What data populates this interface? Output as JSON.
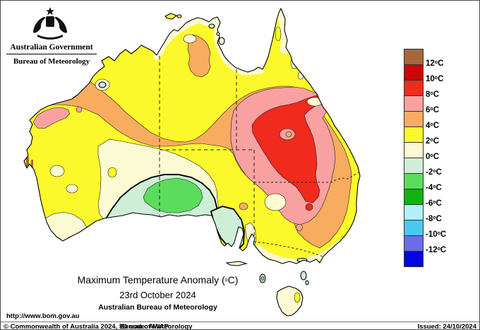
{
  "header": {
    "government_label": "Australian Government",
    "bureau_label": "Bureau of Meteorology"
  },
  "titles": {
    "line1": "Maximum Temperature Anomaly (°C)",
    "line2": "23rd October 2024",
    "line3": "Australian Bureau of Meteorology"
  },
  "legend": {
    "unit": "°C",
    "boundary_labels": [
      "12°C",
      "10°C",
      "8°C",
      "6°C",
      "4°C",
      "2°C",
      "0°C",
      "-2°C",
      "-4°C",
      "-6°C",
      "-8°C",
      "-10°C",
      "-12°C"
    ],
    "colors_top_to_bottom": [
      {
        "name": "above 12",
        "hex": "#A5673B"
      },
      {
        "name": "10 to 12",
        "hex": "#CC0606"
      },
      {
        "name": "8 to 10",
        "hex": "#F02A1D"
      },
      {
        "name": "6 to 8",
        "hex": "#F8A1A0"
      },
      {
        "name": "4 to 6",
        "hex": "#F7AC5F"
      },
      {
        "name": "2 to 4",
        "hex": "#FBF92B"
      },
      {
        "name": "0 to 2",
        "hex": "#FBFAD2"
      },
      {
        "name": "-2 to 0",
        "hex": "#CEEFD6"
      },
      {
        "name": "-4 to -2",
        "hex": "#5CDC5C"
      },
      {
        "name": "-6 to -4",
        "hex": "#12B212"
      },
      {
        "name": "-8 to -6",
        "hex": "#B2F1FB"
      },
      {
        "name": "-10 to -8",
        "hex": "#4AC9EF"
      },
      {
        "name": "-12 to -10",
        "hex": "#6C6CE9"
      },
      {
        "name": "below -12",
        "hex": "#0505E0"
      }
    ]
  },
  "footer": {
    "url": "http://www.bom.gov.au",
    "copyright": "© Commonwealth of Australia 2024, Bureau of Meteorology",
    "id_code": "ID code: AWAP",
    "issued": "Issued: 24/10/2024"
  }
}
